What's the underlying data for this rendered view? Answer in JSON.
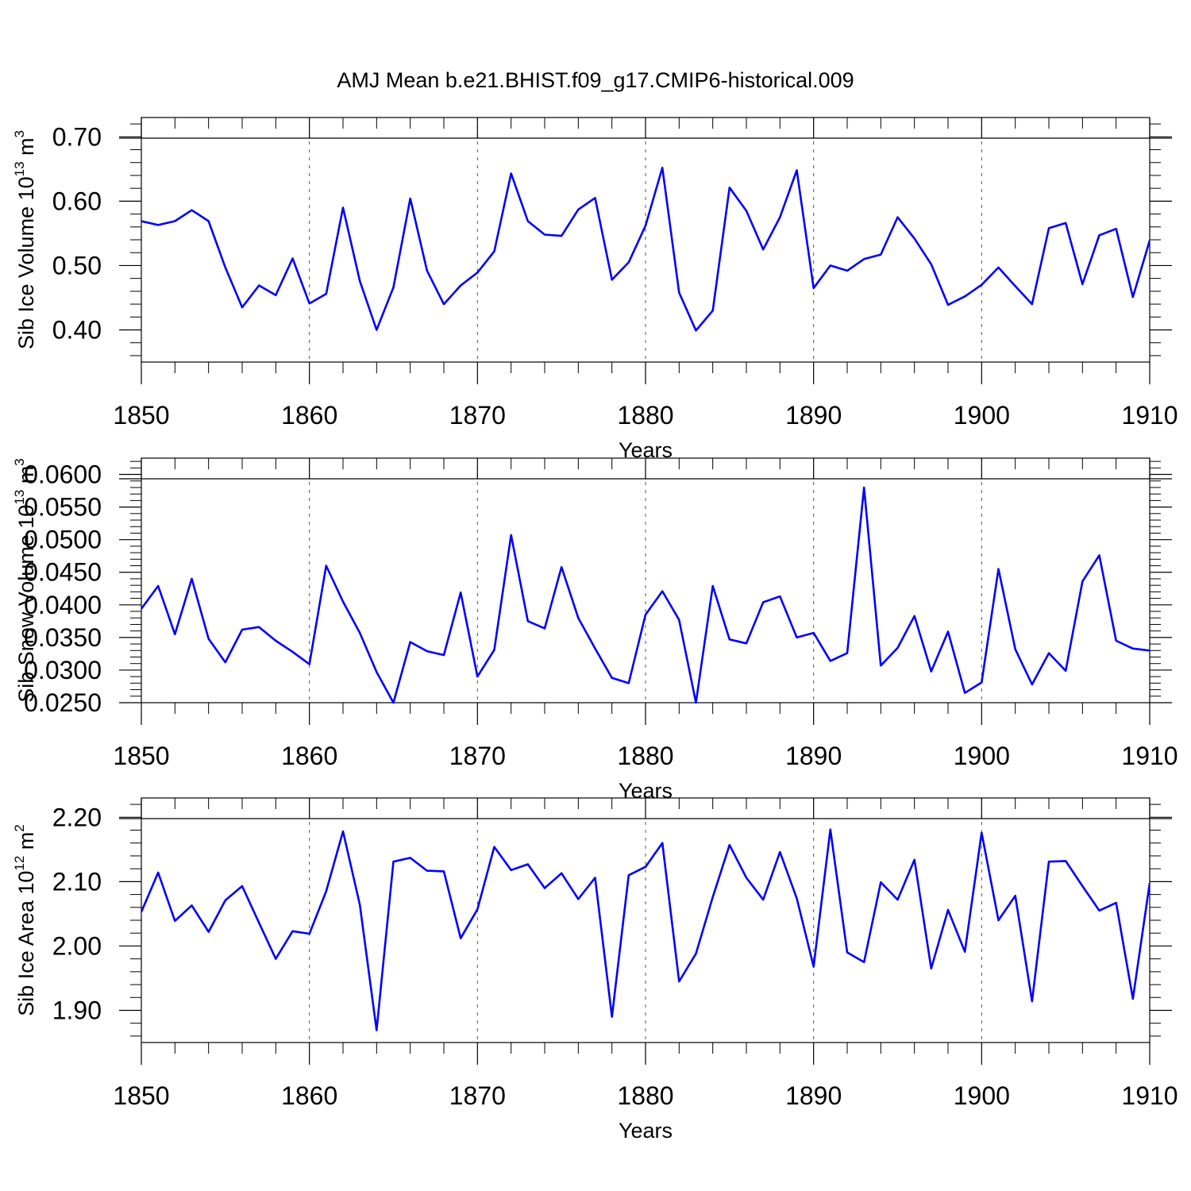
{
  "title": "AMJ Mean b.e21.BHIST.f09_g17.CMIP6-historical.009",
  "colors": {
    "series": "#0000ff",
    "axis": "#000000",
    "grid": "#555555"
  },
  "chart_data": [
    {
      "type": "line",
      "title": "AMJ Mean b.e21.BHIST.f09_g17.CMIP6-historical.009",
      "xlabel": "Years",
      "ylabel": {
        "text": "Sib Ice Volume 10",
        "sup": "13",
        "unit": " m",
        "unit_sup": "3"
      },
      "xlim": [
        1850,
        1910
      ],
      "ylim": [
        0.35,
        0.73
      ],
      "x_ticks": [
        "1850",
        "1860",
        "1870",
        "1880",
        "1890",
        "1900",
        "1910"
      ],
      "y_ticks": [
        "0.40",
        "0.50",
        "0.60",
        "0.70"
      ],
      "grid": "vertical dashed at major x ticks",
      "x": [
        1850,
        1851,
        1852,
        1853,
        1854,
        1855,
        1856,
        1857,
        1858,
        1859,
        1860,
        1861,
        1862,
        1863,
        1864,
        1865,
        1866,
        1867,
        1868,
        1869,
        1870,
        1871,
        1872,
        1873,
        1874,
        1875,
        1876,
        1877,
        1878,
        1879,
        1880,
        1881,
        1882,
        1883,
        1884,
        1885,
        1886,
        1887,
        1888,
        1889,
        1890,
        1891,
        1892,
        1893,
        1894,
        1895,
        1896,
        1897,
        1898,
        1899,
        1900,
        1901,
        1902,
        1903,
        1904,
        1905,
        1906,
        1907,
        1908,
        1909,
        1910
      ],
      "values": [
        0.569,
        0.563,
        0.569,
        0.586,
        0.569,
        0.497,
        0.435,
        0.469,
        0.454,
        0.511,
        0.441,
        0.456,
        0.59,
        0.476,
        0.4,
        0.466,
        0.604,
        0.492,
        0.44,
        0.469,
        0.489,
        0.522,
        0.643,
        0.569,
        0.548,
        0.546,
        0.587,
        0.605,
        0.478,
        0.505,
        0.562,
        0.652,
        0.458,
        0.399,
        0.43,
        0.621,
        0.585,
        0.525,
        0.575,
        0.648,
        0.465,
        0.5,
        0.492,
        0.51,
        0.517,
        0.575,
        0.542,
        0.502,
        0.439,
        0.452,
        0.47,
        0.497,
        0.468,
        0.44,
        0.558,
        0.566,
        0.471,
        0.547,
        0.557,
        0.451,
        0.539
      ]
    },
    {
      "type": "line",
      "xlabel": "Years",
      "ylabel": {
        "text": "Sib Snow Volume 10",
        "sup": "13",
        "unit": " m",
        "unit_sup": "3"
      },
      "xlim": [
        1850,
        1910
      ],
      "ylim": [
        0.025,
        0.0625
      ],
      "x_ticks": [
        "1850",
        "1860",
        "1870",
        "1880",
        "1890",
        "1900",
        "1910"
      ],
      "y_ticks": [
        "0.0250",
        "0.0300",
        "0.0350",
        "0.0400",
        "0.0450",
        "0.0500",
        "0.0550",
        "0.0600"
      ],
      "grid": "vertical dashed at major x ticks",
      "x": [
        1850,
        1851,
        1852,
        1853,
        1854,
        1855,
        1856,
        1857,
        1858,
        1859,
        1860,
        1861,
        1862,
        1863,
        1864,
        1865,
        1866,
        1867,
        1868,
        1869,
        1870,
        1871,
        1872,
        1873,
        1874,
        1875,
        1876,
        1877,
        1878,
        1879,
        1880,
        1881,
        1882,
        1883,
        1884,
        1885,
        1886,
        1887,
        1888,
        1889,
        1890,
        1891,
        1892,
        1893,
        1894,
        1895,
        1896,
        1897,
        1898,
        1899,
        1900,
        1901,
        1902,
        1903,
        1904,
        1905,
        1906,
        1907,
        1908,
        1909,
        1910
      ],
      "values": [
        0.0394,
        0.0429,
        0.0355,
        0.044,
        0.0348,
        0.0312,
        0.0362,
        0.0366,
        0.0345,
        0.0328,
        0.0309,
        0.046,
        0.0405,
        0.0357,
        0.0297,
        0.025,
        0.0343,
        0.0329,
        0.0323,
        0.0419,
        0.029,
        0.0331,
        0.0507,
        0.0375,
        0.0364,
        0.0458,
        0.038,
        0.0333,
        0.0288,
        0.028,
        0.0385,
        0.0421,
        0.0377,
        0.025,
        0.0429,
        0.0347,
        0.0341,
        0.0404,
        0.0413,
        0.035,
        0.0357,
        0.0314,
        0.0326,
        0.058,
        0.0307,
        0.0334,
        0.0383,
        0.0298,
        0.0359,
        0.0265,
        0.0281,
        0.0455,
        0.0332,
        0.0278,
        0.0326,
        0.0299,
        0.0436,
        0.0476,
        0.0345,
        0.0333,
        0.033
      ]
    },
    {
      "type": "line",
      "xlabel": "Years",
      "ylabel": {
        "text": "Sib Ice Area 10",
        "sup": "12",
        "unit": " m",
        "unit_sup": "2"
      },
      "xlim": [
        1850,
        1910
      ],
      "ylim": [
        1.85,
        2.23
      ],
      "x_ticks": [
        "1850",
        "1860",
        "1870",
        "1880",
        "1890",
        "1900",
        "1910"
      ],
      "y_ticks": [
        "1.90",
        "2.00",
        "2.10",
        "2.20"
      ],
      "grid": "vertical dashed at major x ticks",
      "x": [
        1850,
        1851,
        1852,
        1853,
        1854,
        1855,
        1856,
        1857,
        1858,
        1859,
        1860,
        1861,
        1862,
        1863,
        1864,
        1865,
        1866,
        1867,
        1868,
        1869,
        1870,
        1871,
        1872,
        1873,
        1874,
        1875,
        1876,
        1877,
        1878,
        1879,
        1880,
        1881,
        1882,
        1883,
        1884,
        1885,
        1886,
        1887,
        1888,
        1889,
        1890,
        1891,
        1892,
        1893,
        1894,
        1895,
        1896,
        1897,
        1898,
        1899,
        1900,
        1901,
        1902,
        1903,
        1904,
        1905,
        1906,
        1907,
        1908,
        1909,
        1910
      ],
      "values": [
        2.053,
        2.114,
        2.039,
        2.063,
        2.022,
        2.071,
        2.093,
        2.036,
        1.98,
        2.023,
        2.019,
        2.085,
        2.178,
        2.064,
        1.869,
        2.131,
        2.137,
        2.117,
        2.116,
        2.012,
        2.057,
        2.154,
        2.118,
        2.127,
        2.09,
        2.113,
        2.073,
        2.106,
        1.89,
        2.11,
        2.123,
        2.16,
        1.945,
        1.988,
        2.076,
        2.157,
        2.106,
        2.072,
        2.146,
        2.074,
        1.968,
        2.181,
        1.99,
        1.975,
        2.099,
        2.072,
        2.134,
        1.965,
        2.056,
        1.991,
        2.176,
        2.04,
        2.078,
        1.914,
        2.131,
        2.132,
        2.093,
        2.055,
        2.067,
        1.918,
        2.098
      ]
    }
  ]
}
